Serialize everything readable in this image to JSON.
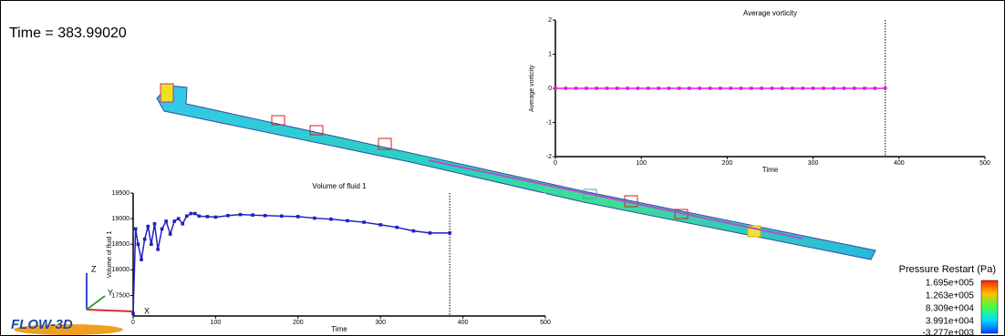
{
  "time_label": "Time = 383.99020",
  "logo": "FLOW-3D",
  "axes_triad": {
    "x": "X",
    "y": "Y",
    "z": "Z"
  },
  "colorbar": {
    "title": "Pressure Restart (Pa)",
    "labels": [
      "1.695e+005",
      "1.263e+005",
      "8.309e+004",
      "3.991e+004",
      "-3.277e+003"
    ]
  },
  "chart_data": [
    {
      "type": "line",
      "title": "Average vorticity",
      "xlabel": "Time",
      "ylabel": "Average vorticity",
      "x": [
        0,
        12,
        24,
        36,
        48,
        60,
        72,
        84,
        96,
        108,
        120,
        132,
        144,
        156,
        168,
        180,
        192,
        204,
        216,
        228,
        240,
        252,
        264,
        276,
        288,
        300,
        312,
        324,
        336,
        348,
        360,
        372,
        384
      ],
      "values": [
        0,
        0,
        0,
        0,
        0,
        0,
        0,
        0,
        0,
        0,
        0,
        0,
        0,
        0,
        0,
        0,
        0,
        0,
        0,
        0,
        0,
        0,
        0,
        0,
        0,
        0,
        0,
        0,
        0,
        0,
        0,
        0,
        0
      ],
      "color": "#e020e0",
      "time_marker": 383.9902,
      "xlim": [
        0,
        500
      ],
      "xticks": [
        0,
        100,
        200,
        300,
        400,
        500
      ],
      "ylim": [
        -2,
        2
      ],
      "yticks": [
        -2,
        -1,
        0,
        1,
        2
      ]
    },
    {
      "type": "line",
      "title": "Volume of fluid 1",
      "xlabel": "Time",
      "ylabel": "Volume of fluid 1",
      "x": [
        0,
        3,
        6,
        10,
        14,
        18,
        22,
        26,
        30,
        35,
        40,
        45,
        50,
        55,
        60,
        65,
        70,
        75,
        80,
        90,
        100,
        115,
        130,
        145,
        160,
        180,
        200,
        220,
        240,
        260,
        280,
        300,
        320,
        340,
        360,
        384
      ],
      "values": [
        17150,
        18800,
        18500,
        18200,
        18600,
        18850,
        18500,
        18900,
        18400,
        18800,
        18950,
        18700,
        18950,
        19000,
        18900,
        19050,
        19100,
        19100,
        19050,
        19040,
        19030,
        19060,
        19080,
        19070,
        19060,
        19050,
        19040,
        19010,
        18990,
        18960,
        18930,
        18880,
        18830,
        18760,
        18720,
        18720
      ],
      "color": "#2020c0",
      "time_marker": 383.9902,
      "xlim": [
        0,
        500
      ],
      "xticks": [
        0,
        100,
        200,
        300,
        400,
        500
      ],
      "ylim": [
        17100,
        19500
      ],
      "yticks": [
        17500,
        18000,
        18500,
        19000,
        19500
      ]
    }
  ]
}
